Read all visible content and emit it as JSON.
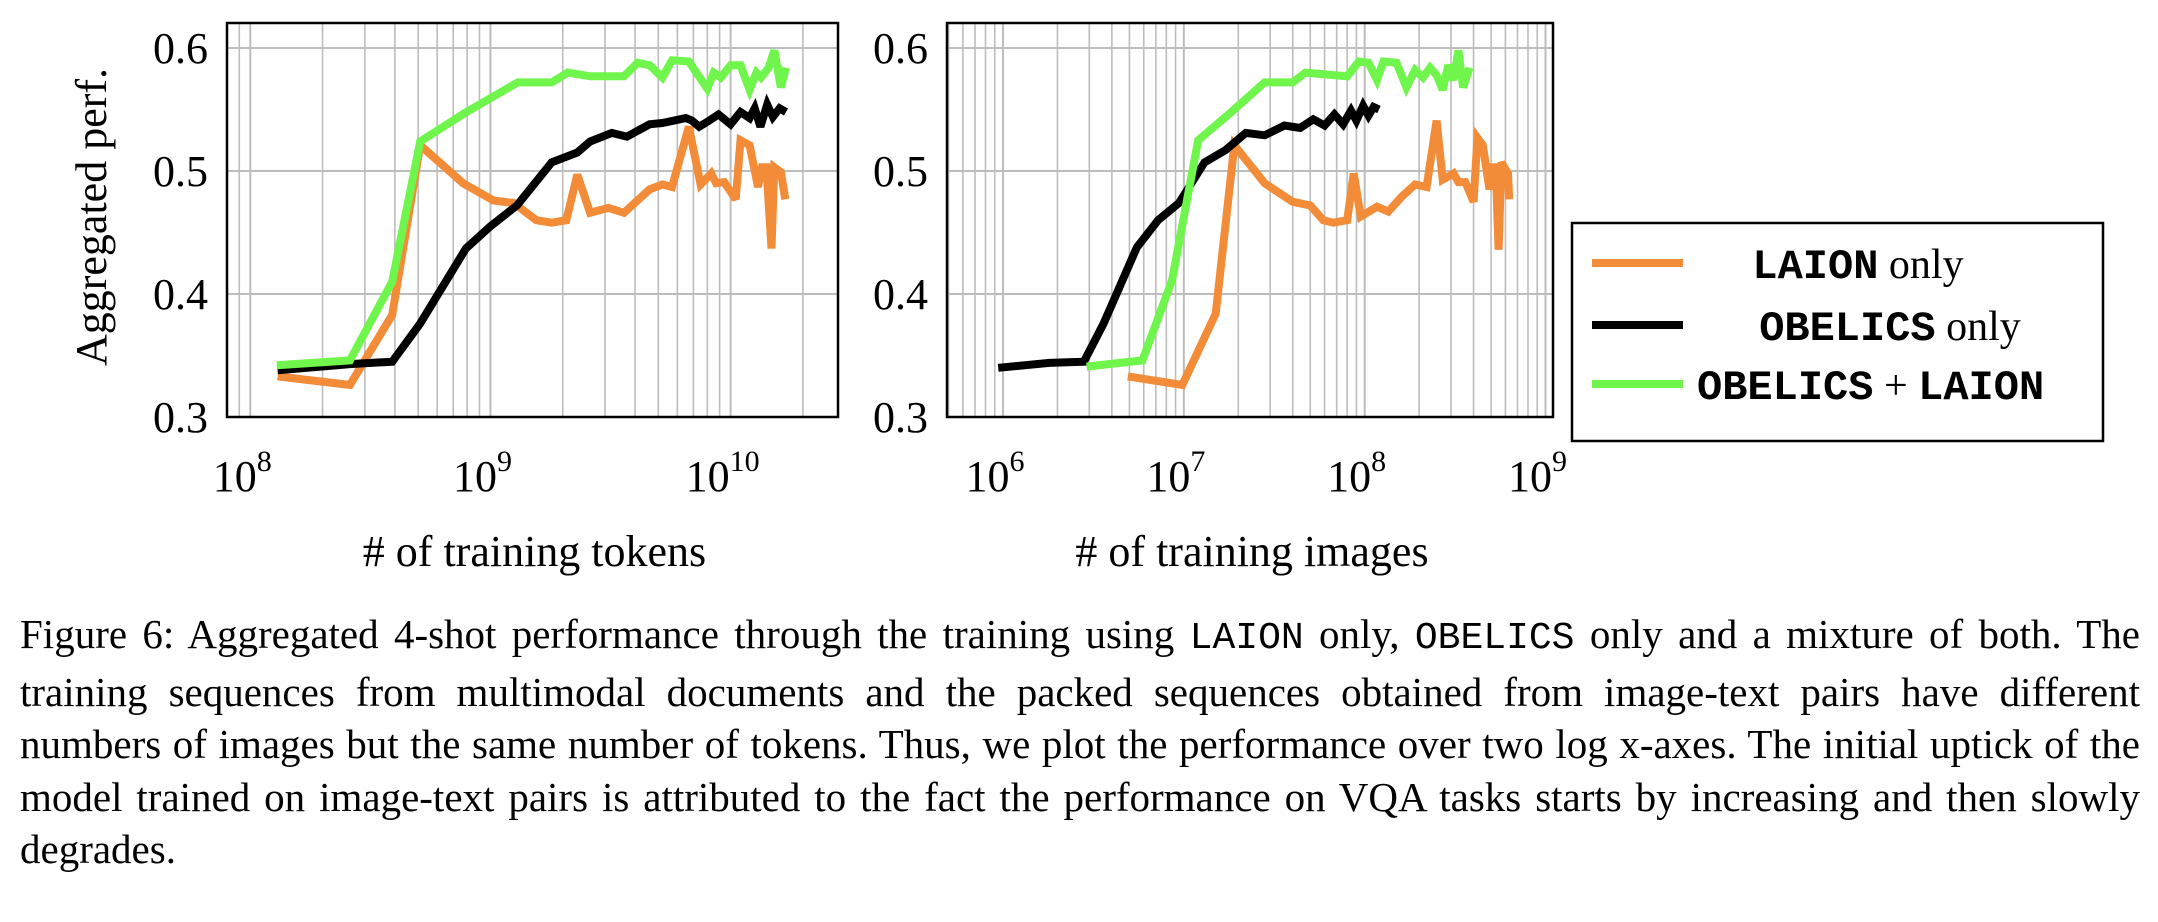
{
  "figure": {
    "legend": [
      {
        "name_mono": "LAION",
        "name_text": " only",
        "color": "#F28C38"
      },
      {
        "name_mono": "OBELICS",
        "name_text": " only",
        "color": "#000000"
      },
      {
        "name_mono": "OBELICS",
        "name_plus": " + ",
        "name_mono2": "LAION",
        "color": "#70F54C"
      }
    ],
    "caption": {
      "label": "Figure 6:",
      "part1": " Aggregated 4-shot performance through the training using ",
      "mono1": "LAION",
      "part2": " only, ",
      "mono2": "OBELICS",
      "part3": " only and a mixture of both. The training sequences from multimodal documents and the packed sequences obtained from image-text pairs have different numbers of images but the same number of tokens. Thus, we plot the performance over two log x-axes. The initial uptick of the model trained on image-text pairs is attributed to the fact the performance on VQA tasks starts by increasing and then slowly degrades."
    }
  },
  "chart_data": [
    {
      "type": "line",
      "title": "",
      "xlabel": "# of training tokens",
      "ylabel": "Aggregated perf.",
      "xscale": "log",
      "xlim": [
        80000000.0,
        28000000000.0
      ],
      "ylim": [
        0.3,
        0.62
      ],
      "xticks": [
        {
          "exp": "8",
          "value": 100000000.0
        },
        {
          "exp": "9",
          "value": 1000000000.0
        },
        {
          "exp": "10",
          "value": 10000000000.0
        }
      ],
      "yticks": [
        "0.3",
        "0.4",
        "0.5",
        "0.6"
      ],
      "grid": true,
      "series": [
        {
          "name": "LAION only",
          "color": "#F28C38",
          "x": [
            130000000.0,
            260000000.0,
            390000000.0,
            510000000.0,
            770000000.0,
            1030000000.0,
            1250000000.0,
            1550000000.0,
            1800000000.0,
            2070000000.0,
            2300000000.0,
            2600000000.0,
            3100000000.0,
            3600000000.0,
            4600000000.0,
            5200000000.0,
            5700000000.0,
            6700000000.0,
            7500000000.0,
            8300000000.0,
            8700000000.0,
            9400000000.0,
            10500000000.0,
            11000000000.0,
            12000000000.0,
            13000000000.0,
            13500000000.0,
            14100000000.0,
            14800000000.0,
            15200000000.0,
            16200000000.0,
            16900000000.0
          ],
          "y": [
            0.333,
            0.326,
            0.383,
            0.521,
            0.49,
            0.476,
            0.474,
            0.46,
            0.458,
            0.46,
            0.497,
            0.466,
            0.47,
            0.466,
            0.485,
            0.489,
            0.487,
            0.536,
            0.489,
            0.498,
            0.49,
            0.491,
            0.477,
            0.525,
            0.521,
            0.487,
            0.503,
            0.503,
            0.437,
            0.503,
            0.499,
            0.477
          ]
        },
        {
          "name": "OBELICS only",
          "color": "#000000",
          "x": [
            130000000.0,
            260000000.0,
            390000000.0,
            510000000.0,
            790000000.0,
            1000000000.0,
            1290000000.0,
            1800000000.0,
            2300000000.0,
            2600000000.0,
            3200000000.0,
            3700000000.0,
            4600000000.0,
            5200000000.0,
            6500000000.0,
            6900000000.0,
            7400000000.0,
            8000000000.0,
            8900000000.0,
            10000000000.0,
            11000000000.0,
            12000000000.0,
            12600000000.0,
            13300000000.0,
            14200000000.0,
            15000000000.0,
            16000000000.0,
            17000000000.0
          ],
          "y": [
            0.338,
            0.343,
            0.345,
            0.376,
            0.437,
            0.455,
            0.472,
            0.507,
            0.515,
            0.524,
            0.531,
            0.528,
            0.538,
            0.539,
            0.543,
            0.541,
            0.536,
            0.54,
            0.546,
            0.538,
            0.548,
            0.543,
            0.551,
            0.536,
            0.554,
            0.544,
            0.551,
            0.548
          ]
        },
        {
          "name": "OBELICS + LAION",
          "color": "#70F54C",
          "x": [
            129000000.0,
            260000000.0,
            390000000.0,
            510000000.0,
            780000000.0,
            1300000000.0,
            1800000000.0,
            2100000000.0,
            2600000000.0,
            3600000000.0,
            4100000000.0,
            4600000000.0,
            5200000000.0,
            5700000000.0,
            6700000000.0,
            8000000000.0,
            8500000000.0,
            9100000000.0,
            10000000000.0,
            11000000000.0,
            12000000000.0,
            12800000000.0,
            13400000000.0,
            14400000000.0,
            15200000000.0,
            16200000000.0,
            17000000000.0
          ],
          "y": [
            0.342,
            0.346,
            0.41,
            0.524,
            0.547,
            0.572,
            0.572,
            0.58,
            0.577,
            0.577,
            0.588,
            0.586,
            0.576,
            0.59,
            0.589,
            0.567,
            0.58,
            0.576,
            0.586,
            0.586,
            0.566,
            0.58,
            0.576,
            0.584,
            0.598,
            0.568,
            0.584
          ]
        }
      ]
    },
    {
      "type": "line",
      "title": "",
      "xlabel": "# of training images",
      "ylabel": "",
      "xscale": "log",
      "xlim": [
        490000.0,
        1100000000.0
      ],
      "ylim": [
        0.3,
        0.62
      ],
      "xticks": [
        {
          "exp": "6",
          "value": 1000000.0
        },
        {
          "exp": "7",
          "value": 10000000.0
        },
        {
          "exp": "8",
          "value": 100000000.0
        },
        {
          "exp": "9",
          "value": 1000000000.0
        }
      ],
      "yticks": [
        "0.3",
        "0.4",
        "0.5",
        "0.6"
      ],
      "grid": true,
      "series": [
        {
          "name": "LAION only",
          "color": "#F28C38",
          "x": [
            4900000.0,
            9800000.0,
            15000000.0,
            19000000.0,
            28000000.0,
            40000000.0,
            50000000.0,
            59000000.0,
            67000000.0,
            80000000.0,
            87000000.0,
            95000000.0,
            117000000.0,
            135000000.0,
            160000000.0,
            190000000.0,
            220000000.0,
            250000000.0,
            270000000.0,
            310000000.0,
            330000000.0,
            360000000.0,
            400000000.0,
            420000000.0,
            450000000.0,
            490000000.0,
            510000000.0,
            530000000.0,
            550000000.0,
            570000000.0,
            620000000.0,
            630000000.0
          ],
          "y": [
            0.333,
            0.326,
            0.384,
            0.521,
            0.49,
            0.475,
            0.472,
            0.46,
            0.458,
            0.46,
            0.498,
            0.463,
            0.471,
            0.467,
            0.479,
            0.489,
            0.487,
            0.541,
            0.493,
            0.498,
            0.491,
            0.491,
            0.475,
            0.527,
            0.521,
            0.485,
            0.503,
            0.503,
            0.436,
            0.507,
            0.498,
            0.477
          ]
        },
        {
          "name": "OBELICS only",
          "color": "#000000",
          "x": [
            940000.0,
            1800000.0,
            2800000.0,
            3600000.0,
            5500000.0,
            7200000.0,
            9400000.0,
            13000000.0,
            17000000.0,
            22000000.0,
            28000000.0,
            36000000.0,
            44000000.0,
            52000000.0,
            60000000.0,
            68000000.0,
            76000000.0,
            84000000.0,
            90000000.0,
            98000000.0,
            105000000.0,
            112000000.0,
            120000000.0
          ],
          "y": [
            0.34,
            0.344,
            0.345,
            0.376,
            0.438,
            0.46,
            0.474,
            0.507,
            0.517,
            0.531,
            0.529,
            0.537,
            0.535,
            0.542,
            0.537,
            0.546,
            0.538,
            0.549,
            0.541,
            0.553,
            0.545,
            0.552,
            0.55
          ]
        },
        {
          "name": "OBELICS + LAION",
          "color": "#70F54C",
          "x": [
            2900000.0,
            5900000.0,
            8600000.0,
            12000000.0,
            18000000.0,
            28000000.0,
            40000000.0,
            47000000.0,
            80000000.0,
            93000000.0,
            105000000.0,
            117000000.0,
            127000000.0,
            150000000.0,
            170000000.0,
            190000000.0,
            210000000.0,
            230000000.0,
            250000000.0,
            270000000.0,
            290000000.0,
            310000000.0,
            330000000.0,
            350000000.0,
            380000000.0
          ],
          "y": [
            0.341,
            0.346,
            0.411,
            0.525,
            0.547,
            0.572,
            0.572,
            0.58,
            0.577,
            0.589,
            0.588,
            0.574,
            0.589,
            0.588,
            0.568,
            0.582,
            0.576,
            0.584,
            0.578,
            0.566,
            0.586,
            0.574,
            0.598,
            0.568,
            0.584
          ]
        }
      ]
    }
  ]
}
